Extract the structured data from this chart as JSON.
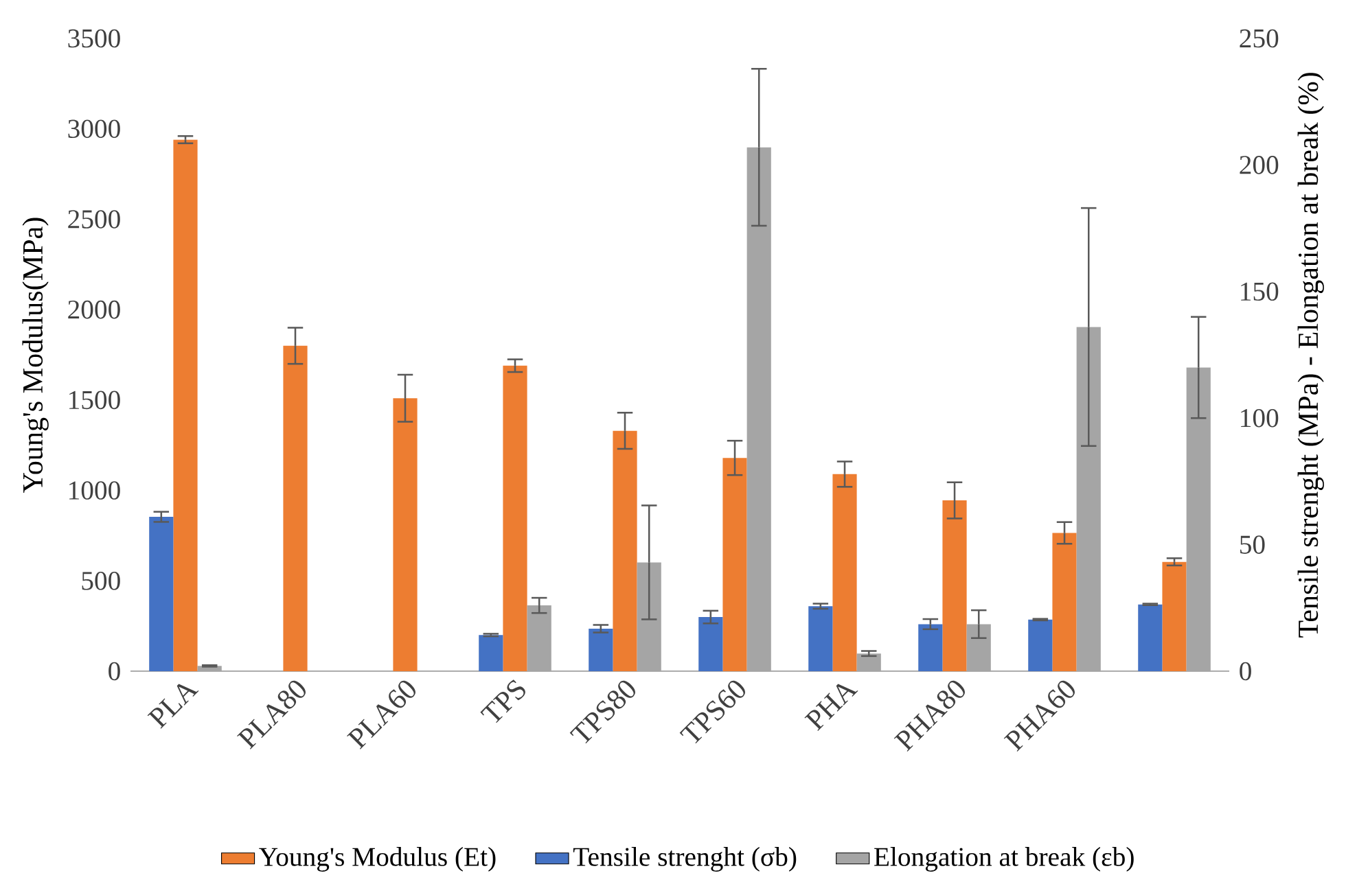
{
  "chart_data": {
    "type": "bar",
    "categories": [
      "PLA",
      "PLA80",
      "PLA60",
      "TPS",
      "TPS80",
      "TPS60",
      "PHA",
      "PHA80",
      "PHA60",
      null
    ],
    "series": [
      {
        "name": "Young's Modulus (Et)",
        "color": "#ed7d31",
        "axis": "y",
        "values": [
          2940,
          1800,
          1510,
          1690,
          1330,
          1180,
          1090,
          945,
          765,
          605
        ],
        "errors": [
          20,
          100,
          130,
          35,
          100,
          95,
          70,
          100,
          60,
          20
        ]
      },
      {
        "name": "Tensile strenght (σb)",
        "color": "#4472c4",
        "axis": "y2",
        "values": [
          61,
          null,
          null,
          14.3,
          16.8,
          21.4,
          25.7,
          18.6,
          20.4,
          26.4
        ],
        "errors": [
          2,
          null,
          null,
          0.5,
          1.5,
          2.5,
          1,
          2,
          0.3,
          0.3
        ]
      },
      {
        "name": "Elongation at break (εb)",
        "color": "#a5a5a5",
        "axis": "y2",
        "values": [
          2.1,
          null,
          null,
          26,
          43,
          207,
          7,
          18.6,
          136,
          120
        ],
        "errors": [
          0.3,
          null,
          null,
          3,
          22.5,
          31,
          1,
          5.5,
          47,
          20
        ]
      }
    ],
    "ylabel": "Young's Modulus(MPa)",
    "y2label": "Tensile strenght (MPa) - Elongation at break (%)",
    "ylim": [
      0,
      3500
    ],
    "yticks": [
      0,
      500,
      1000,
      1500,
      2000,
      2500,
      3000,
      3500
    ],
    "y2lim": [
      0,
      250
    ],
    "y2ticks": [
      0,
      50,
      100,
      150,
      200,
      250
    ],
    "legend": "bottom",
    "grid": false
  }
}
